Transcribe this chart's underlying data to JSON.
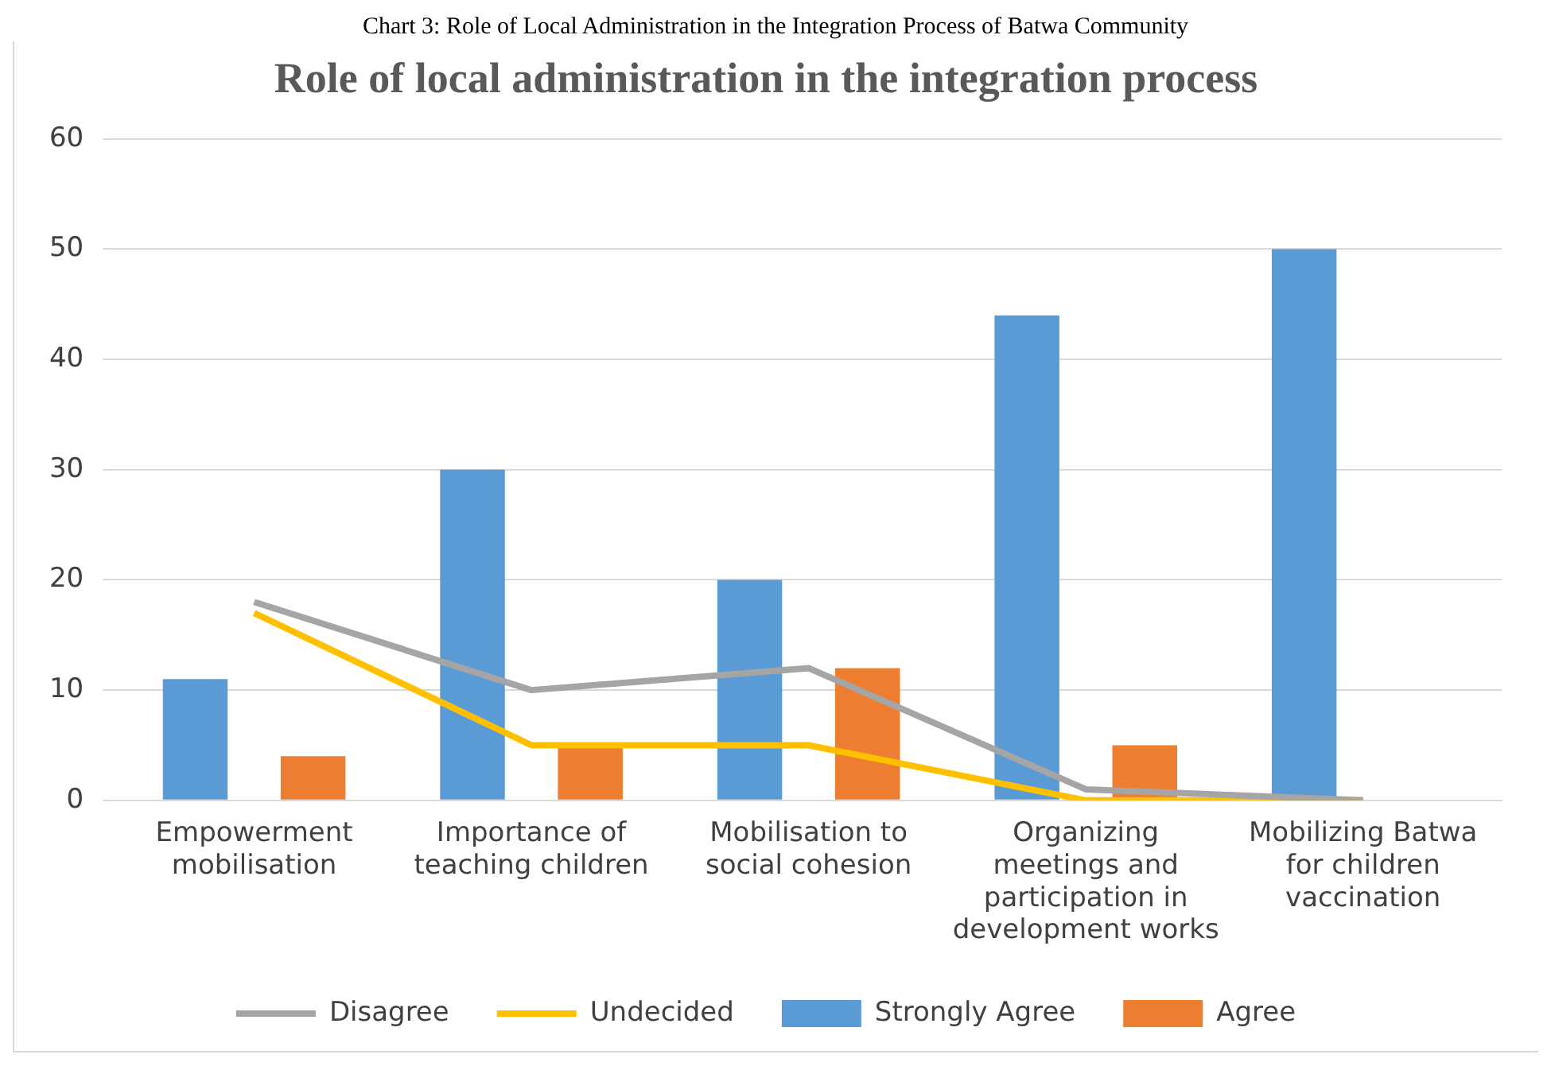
{
  "chart_data": {
    "type": "bar",
    "title": "Role of local administration in the integration process",
    "annotations": [
      "Chart 3: Role of Local Administration in the Integration Process of Batwa Community"
    ],
    "categories": [
      "Empowerment mobilisation",
      "Importance of teaching children",
      "Mobilisation to social cohesion",
      "Organizing meetings and participation in development works",
      "Mobilizing Batwa for children vaccination"
    ],
    "series": [
      {
        "name": "Strongly Agree",
        "color": "#5b9bd5",
        "values": [
          11,
          30,
          20,
          44,
          50
        ]
      },
      {
        "name": "Agree",
        "color": "#ed7d31",
        "values": [
          4,
          5,
          12,
          5,
          0
        ]
      },
      {
        "name": "Disagree",
        "color": "#a5a5a5",
        "type": "line",
        "values": [
          18,
          10,
          12,
          1,
          0
        ]
      },
      {
        "name": "Undecided",
        "color": "#ffc000",
        "type": "line",
        "values": [
          17,
          5,
          5,
          0,
          0
        ]
      }
    ],
    "ylim": [
      0,
      60
    ],
    "yticks": [
      0,
      10,
      20,
      30,
      40,
      50,
      60
    ],
    "grid": "y",
    "legend": "bottom"
  }
}
